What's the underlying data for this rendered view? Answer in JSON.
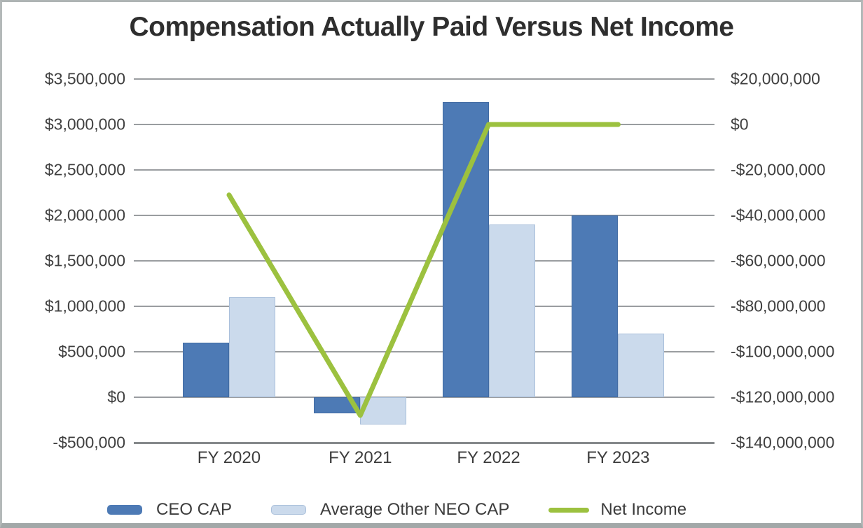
{
  "title": "Compensation Actually Paid Versus Net Income",
  "chart_data": {
    "type": "combo-bar-line",
    "title": "Compensation Actually Paid Versus Net Income",
    "categories": [
      "FY 2020",
      "FY 2021",
      "FY 2022",
      "FY 2023"
    ],
    "series": [
      {
        "name": "CEO CAP",
        "type": "bar",
        "axis": "left",
        "color": "#4d7ab5",
        "values": [
          600000,
          -175000,
          3250000,
          2000000
        ]
      },
      {
        "name": "Average Other NEO CAP",
        "type": "bar",
        "axis": "left",
        "color": "#cbdaec",
        "values": [
          1100000,
          -300000,
          1900000,
          700000
        ]
      },
      {
        "name": "Net Income",
        "type": "line",
        "axis": "right",
        "color": "#9cc13f",
        "values": [
          -31000000,
          -128000000,
          0,
          0
        ]
      }
    ],
    "left_axis": {
      "min": -500000,
      "max": 3500000,
      "step": 500000,
      "tick_labels": [
        "$3,500,000",
        "$3,000,000",
        "$2,500,000",
        "$2,000,000",
        "$1,500,000",
        "$1,000,000",
        "$500,000",
        "$0",
        "-$500,000"
      ]
    },
    "right_axis": {
      "min": -140000000,
      "max": 20000000,
      "step": 20000000,
      "tick_labels": [
        "$20,000,000",
        "$0",
        "-$20,000,000",
        "-$40,000,000",
        "-$60,000,000",
        "-$80,000,000",
        "-$100,000,000",
        "-$120,000,000",
        "-$140,000,000"
      ]
    },
    "grid": true,
    "legend_position": "bottom",
    "colors": {
      "grid": "#9a9da0",
      "axis_text": "#3f3f3f",
      "title_text": "#2e2e2e"
    }
  }
}
